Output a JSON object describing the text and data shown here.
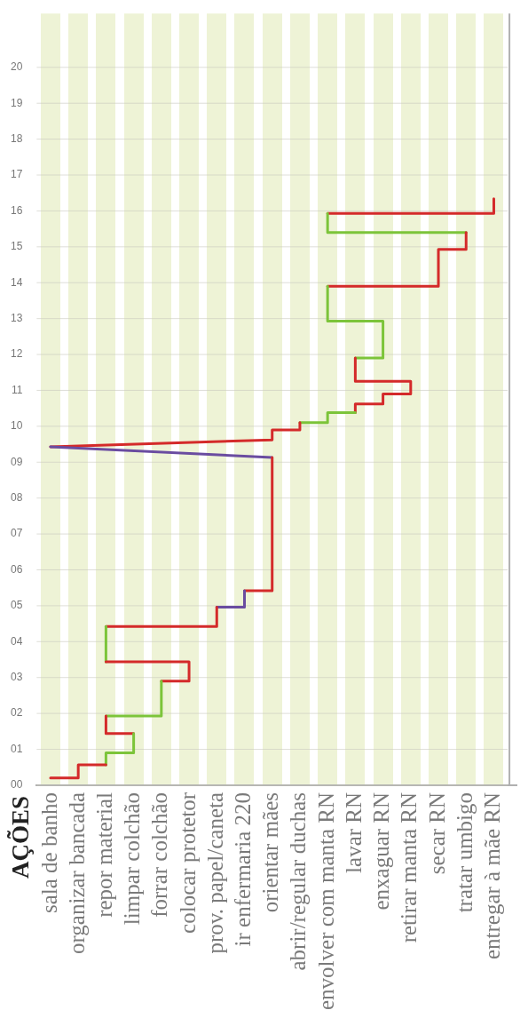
{
  "chart_data": {
    "type": "line",
    "annotations": [
      "AÇÕES"
    ],
    "categories": [
      "sala de banho",
      "organizar bancada",
      "repor material",
      "limpar colchão",
      "forrar colchão",
      "colocar protetor",
      "prov. papel/caneta",
      "ir enfermaria 220",
      "orientar mães",
      "abrir/regular duchas",
      "envolver com manta RN",
      "lavar RN",
      "enxaguar RN",
      "retirar manta RN",
      "secar RN",
      "tratar umbigo",
      "entregar à mãe RN"
    ],
    "ylim": [
      0,
      21.5
    ],
    "yticks": [
      {
        "value": 0,
        "label": "00"
      },
      {
        "value": 1,
        "label": "01"
      },
      {
        "value": 2,
        "label": "02"
      },
      {
        "value": 3,
        "label": "03"
      },
      {
        "value": 4,
        "label": "04"
      },
      {
        "value": 5,
        "label": "05"
      },
      {
        "value": 6,
        "label": "06"
      },
      {
        "value": 7,
        "label": "07"
      },
      {
        "value": 8,
        "label": "08"
      },
      {
        "value": 9,
        "label": "09"
      },
      10,
      11,
      12,
      13,
      14,
      15,
      16,
      17,
      18,
      19,
      20
    ],
    "grid": true,
    "marker": "none",
    "line_style": "solid",
    "series": [
      {
        "color": "#d42a2a",
        "x": [
          "sala de banho",
          "organizar bancada",
          "organizar bancada",
          "repor material"
        ],
        "values": [
          0.2,
          0.2,
          0.57,
          0.57
        ]
      },
      {
        "color": "#7cc43a",
        "x": [
          "repor material",
          "repor material",
          "limpar colchão",
          "limpar colchão"
        ],
        "values": [
          0.57,
          0.9,
          0.9,
          1.44
        ]
      },
      {
        "color": "#d42a2a",
        "x": [
          "limpar colchão",
          "repor material",
          "repor material"
        ],
        "values": [
          1.44,
          1.44,
          1.93
        ]
      },
      {
        "color": "#7cc43a",
        "x": [
          "repor material",
          "forrar colchão",
          "forrar colchão"
        ],
        "values": [
          1.93,
          1.93,
          2.9
        ]
      },
      {
        "color": "#d42a2a",
        "x": [
          "forrar colchão",
          "colocar protetor",
          "colocar protetor",
          "repor material"
        ],
        "values": [
          2.9,
          2.9,
          3.44,
          3.44
        ]
      },
      {
        "color": "#7cc43a",
        "x": [
          "repor material",
          "repor material"
        ],
        "values": [
          3.44,
          4.42
        ]
      },
      {
        "color": "#d42a2a",
        "x": [
          "repor material",
          "prov. papel/caneta",
          "prov. papel/caneta"
        ],
        "values": [
          4.42,
          4.42,
          4.96
        ]
      },
      {
        "color": "#6a4ca0",
        "x": [
          "prov. papel/caneta",
          "ir enfermaria 220",
          "ir enfermaria 220"
        ],
        "values": [
          4.96,
          4.96,
          5.42
        ]
      },
      {
        "color": "#d42a2a",
        "x": [
          "ir enfermaria 220",
          "orientar mães",
          "orientar mães"
        ],
        "values": [
          5.42,
          5.42,
          9.13
        ]
      },
      {
        "color": "#6a4ca0",
        "x": [
          "orientar mães",
          "sala de banho"
        ],
        "values": [
          9.13,
          9.43
        ]
      },
      {
        "color": "#d42a2a",
        "x": [
          "sala de banho",
          "orientar mães",
          "orientar mães",
          "abrir/regular duchas",
          "abrir/regular duchas"
        ],
        "values": [
          9.43,
          9.62,
          9.9,
          9.9,
          10.1
        ]
      },
      {
        "color": "#7cc43a",
        "x": [
          "abrir/regular duchas",
          "envolver com manta RN",
          "envolver com manta RN",
          "lavar RN"
        ],
        "values": [
          10.1,
          10.1,
          10.38,
          10.38
        ]
      },
      {
        "color": "#d42a2a",
        "x": [
          "lavar RN",
          "lavar RN",
          "enxaguar RN",
          "enxaguar RN",
          "retirar manta RN",
          "retirar manta RN",
          "lavar RN",
          "lavar RN"
        ],
        "values": [
          10.38,
          10.62,
          10.62,
          10.9,
          10.9,
          11.25,
          11.25,
          11.9
        ]
      },
      {
        "color": "#7cc43a",
        "x": [
          "lavar RN",
          "enxaguar RN",
          "enxaguar RN",
          "envolver com manta RN",
          "envolver com manta RN"
        ],
        "values": [
          11.9,
          11.9,
          12.93,
          12.93,
          13.9
        ]
      },
      {
        "color": "#d42a2a",
        "x": [
          "envolver com manta RN",
          "secar RN",
          "secar RN",
          "tratar umbigo",
          "tratar umbigo"
        ],
        "values": [
          13.9,
          13.9,
          14.93,
          14.93,
          15.4
        ]
      },
      {
        "color": "#7cc43a",
        "x": [
          "tratar umbigo",
          "envolver com manta RN",
          "envolver com manta RN"
        ],
        "values": [
          15.4,
          15.4,
          15.93
        ]
      },
      {
        "color": "#d42a2a",
        "x": [
          "envolver com manta RN",
          "entregar à mãe RN",
          "entregar à mãe RN"
        ],
        "values": [
          15.93,
          15.93,
          16.34
        ]
      }
    ]
  }
}
